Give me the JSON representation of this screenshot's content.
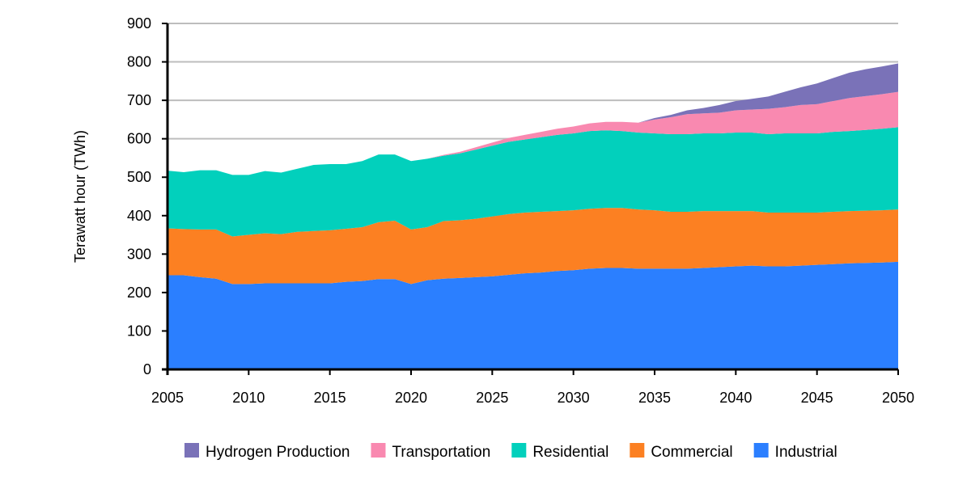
{
  "chart_data": {
    "type": "area",
    "stacked": true,
    "title": "",
    "xlabel": "",
    "ylabel": "Terawatt hour (TWh)",
    "xlim": [
      2005,
      2050
    ],
    "ylim": [
      0,
      900
    ],
    "y_ticks": [
      0,
      100,
      200,
      300,
      400,
      500,
      600,
      700,
      800,
      900
    ],
    "x_ticks": [
      2005,
      2010,
      2015,
      2020,
      2025,
      2030,
      2035,
      2040,
      2045,
      2050
    ],
    "grid": "horizontal",
    "legend_position": "bottom",
    "x": [
      2005,
      2006,
      2007,
      2008,
      2009,
      2010,
      2011,
      2012,
      2013,
      2014,
      2015,
      2016,
      2017,
      2018,
      2019,
      2020,
      2021,
      2022,
      2023,
      2024,
      2025,
      2026,
      2027,
      2028,
      2029,
      2030,
      2031,
      2032,
      2033,
      2034,
      2035,
      2036,
      2037,
      2038,
      2039,
      2040,
      2041,
      2042,
      2043,
      2044,
      2045,
      2046,
      2047,
      2048,
      2049,
      2050
    ],
    "series": [
      {
        "name": "Industrial",
        "color": "#2b7fff",
        "values": [
          245,
          245,
          240,
          236,
          222,
          222,
          224,
          224,
          224,
          224,
          224,
          228,
          230,
          235,
          235,
          222,
          232,
          236,
          238,
          240,
          242,
          246,
          250,
          252,
          256,
          258,
          262,
          264,
          264,
          262,
          262,
          262,
          262,
          264,
          266,
          268,
          270,
          268,
          268,
          270,
          272,
          274,
          276,
          277,
          278,
          280
        ]
      },
      {
        "name": "Commercial",
        "color": "#fc8022",
        "values": [
          122,
          120,
          124,
          128,
          124,
          128,
          130,
          128,
          134,
          136,
          138,
          138,
          140,
          148,
          152,
          142,
          138,
          150,
          150,
          152,
          156,
          158,
          158,
          158,
          156,
          156,
          156,
          156,
          156,
          154,
          152,
          148,
          148,
          148,
          146,
          144,
          142,
          140,
          140,
          138,
          136,
          136,
          136,
          136,
          136,
          136
        ]
      },
      {
        "name": "Residential",
        "color": "#02d0bc",
        "values": [
          150,
          148,
          154,
          154,
          160,
          156,
          162,
          160,
          164,
          172,
          172,
          168,
          172,
          176,
          172,
          178,
          178,
          170,
          174,
          180,
          184,
          188,
          190,
          194,
          198,
          200,
          202,
          202,
          200,
          200,
          200,
          202,
          202,
          202,
          202,
          204,
          204,
          204,
          206,
          206,
          206,
          208,
          208,
          210,
          212,
          214
        ]
      },
      {
        "name": "Transportation",
        "color": "#f989b0",
        "values": [
          0,
          0,
          0,
          0,
          0,
          0,
          0,
          0,
          0,
          0,
          0,
          0,
          0,
          0,
          0,
          0,
          0,
          2,
          4,
          6,
          8,
          10,
          12,
          14,
          16,
          18,
          20,
          22,
          24,
          26,
          36,
          44,
          52,
          52,
          54,
          58,
          60,
          66,
          68,
          74,
          76,
          80,
          86,
          88,
          90,
          92
        ]
      },
      {
        "name": "Hydrogen Production",
        "color": "#7a72b8",
        "values": [
          0,
          0,
          0,
          0,
          0,
          0,
          0,
          0,
          0,
          0,
          0,
          0,
          0,
          0,
          0,
          0,
          0,
          0,
          0,
          0,
          0,
          0,
          0,
          0,
          0,
          0,
          0,
          0,
          0,
          0,
          4,
          6,
          10,
          14,
          20,
          24,
          28,
          32,
          40,
          46,
          54,
          60,
          66,
          70,
          72,
          74
        ]
      }
    ],
    "legend_order": [
      "Hydrogen Production",
      "Transportation",
      "Residential",
      "Commercial",
      "Industrial"
    ]
  }
}
